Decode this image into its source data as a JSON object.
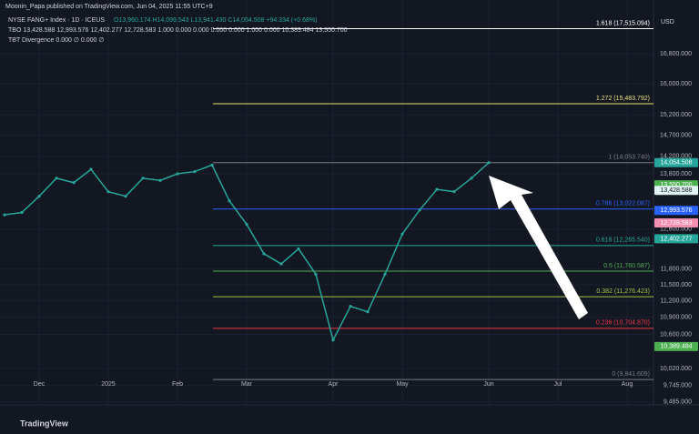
{
  "chart_data": {
    "type": "line",
    "publisher": "Moonin_Papa published on TradingView.com, Jun 04, 2025 11:55 UTC+9",
    "title": "NYSE FANG+ Index · 1D · ICEUS",
    "ohlc_text": "O13,960.174 H14,099.543 L13,941.430 C14,054.508 +94.334 (+0.68%)",
    "indicator_1": "TBO 13,428.588 12,993.576 12,402.277 12,728.583 1.000 0.000 0.000 0.000 0.000 1.000 0.000 10,389.484 13,550.700",
    "indicator_2": "TBT Divergence 0.000 ∅ 0.000 ∅",
    "currency": "USD",
    "brand": "TradingView",
    "log_scale": true,
    "grid": true,
    "categories": [
      null,
      null,
      "Dec",
      null,
      null,
      null,
      "2025",
      null,
      null,
      null,
      "Feb",
      null,
      null,
      null,
      "Mar",
      null,
      null,
      null,
      null,
      "Apr",
      null,
      null,
      null,
      "May",
      null,
      null,
      null,
      null,
      "Jun",
      null,
      null,
      null,
      "Jul",
      null,
      null,
      null,
      "Aug"
    ],
    "series": [
      {
        "name": "NYSE FANG+ Index",
        "color": "#26a69a",
        "values": [
          12900,
          12950,
          13300,
          13700,
          13600,
          13900,
          13400,
          13300,
          13700,
          13650,
          13800,
          13850,
          14000,
          13200,
          12700,
          12100,
          11900,
          12200,
          11700,
          10500,
          11100,
          11000,
          11700,
          12500,
          13000,
          13450,
          13400,
          13700,
          14054.508,
          null,
          null,
          null,
          null,
          null,
          null,
          null,
          null
        ]
      }
    ],
    "ylim": [
      9440,
      18360
    ],
    "yticks": [
      {
        "value": 16800,
        "label": "16,800.000"
      },
      {
        "value": 16000,
        "label": "16,000.000"
      },
      {
        "value": 15200,
        "label": "15,200.000"
      },
      {
        "value": 14700,
        "label": "14,700.000"
      },
      {
        "value": 14200,
        "label": "14,200.000"
      },
      {
        "value": 13800,
        "label": "13,800.000"
      },
      {
        "value": 12600,
        "label": "12,600.000"
      },
      {
        "value": 11800,
        "label": "11,800.000"
      },
      {
        "value": 11500,
        "label": "11,500.000"
      },
      {
        "value": 11200,
        "label": "11,200.000"
      },
      {
        "value": 10900,
        "label": "10,900.000"
      },
      {
        "value": 10600,
        "label": "10,600.000"
      },
      {
        "value": 10020,
        "label": "10,020.000"
      },
      {
        "value": 9745,
        "label": "9,745.000"
      },
      {
        "value": 9485,
        "label": "9,485.000"
      }
    ],
    "fib_levels": [
      {
        "value": 17515.094,
        "label": "1.618 (17,515.094)",
        "color": "#ffffff"
      },
      {
        "value": 15483.792,
        "label": "1.272 (15,483.792)",
        "color": "#e8e37a"
      },
      {
        "value": 14053.74,
        "label": "1 (14,053.740)",
        "color": "#787b86"
      },
      {
        "value": 13022.087,
        "label": "0.786 (13,022.087)",
        "color": "#2962ff"
      },
      {
        "value": 12265.54,
        "label": "0.618 (12,265.540)",
        "color": "#22ab94"
      },
      {
        "value": 11760.587,
        "label": "0.5 (11,760.587)",
        "color": "#4caf50"
      },
      {
        "value": 11276.423,
        "label": "0.382 (11,276.423)",
        "color": "#a5c34a"
      },
      {
        "value": 10704.87,
        "label": "0.236 (10,704.870)",
        "color": "#f23645"
      },
      {
        "value": 9841.609,
        "label": "0 (9,841.609)",
        "color": "#787b86"
      }
    ],
    "price_badges": [
      {
        "value": 14054.508,
        "label": "14,054.508",
        "color": "#26a69a"
      },
      {
        "value": 13550.7,
        "label": "13,550.700",
        "color": "#4caf50"
      },
      {
        "value": 13428.588,
        "label": "13,428.588",
        "color": "#e0f2f1"
      },
      {
        "value": 12993.576,
        "label": "12,993.576",
        "color": "#2962ff"
      },
      {
        "value": 12728.583,
        "label": "12,728.583",
        "color": "#f48fb1"
      },
      {
        "value": 12402.277,
        "label": "12,402.277",
        "color": "#26a69a"
      },
      {
        "value": 10389.484,
        "label": "10,389.484",
        "color": "#4caf50"
      }
    ]
  }
}
